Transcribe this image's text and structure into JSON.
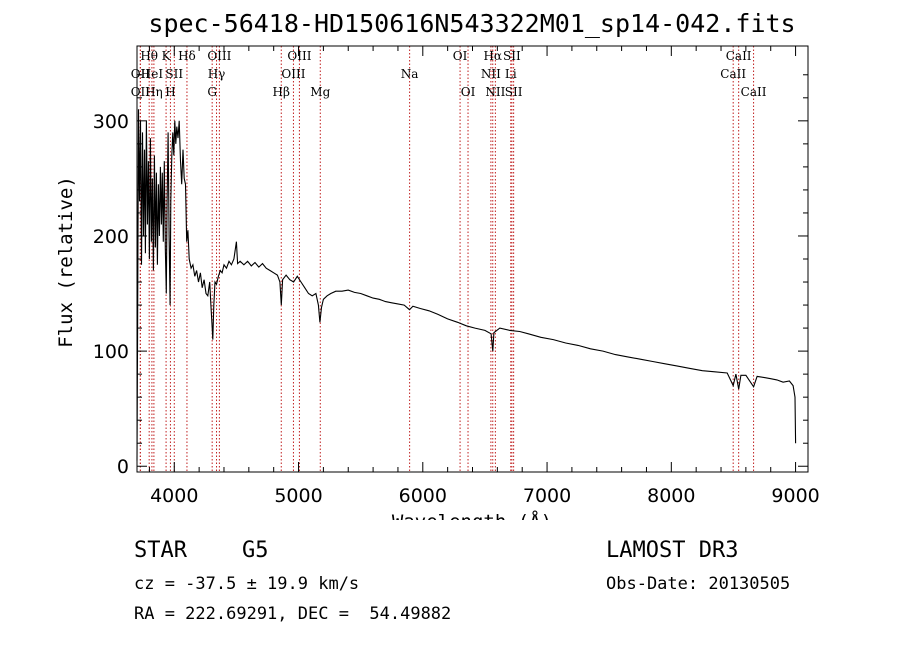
{
  "chart_data": {
    "type": "line",
    "title": "spec-56418-HD150616N543322M01_sp14-042.fits",
    "xlabel": "Wavelength (Å)",
    "ylabel": "Flux (relative)",
    "xlim": [
      3700,
      9100
    ],
    "ylim": [
      -5,
      365
    ],
    "x_ticks": [
      4000,
      5000,
      6000,
      7000,
      8000,
      9000
    ],
    "y_ticks": [
      0,
      100,
      200,
      300
    ],
    "series": [
      {
        "name": "spectrum",
        "points": [
          [
            3700,
            5
          ],
          [
            3705,
            120
          ],
          [
            3712,
            310
          ],
          [
            3720,
            230
          ],
          [
            3728,
            300
          ],
          [
            3736,
            175
          ],
          [
            3744,
            290
          ],
          [
            3752,
            200
          ],
          [
            3760,
            275
          ],
          [
            3768,
            185
          ],
          [
            3776,
            300
          ],
          [
            3784,
            210
          ],
          [
            3792,
            265
          ],
          [
            3800,
            180
          ],
          [
            3808,
            285
          ],
          [
            3816,
            195
          ],
          [
            3824,
            250
          ],
          [
            3832,
            170
          ],
          [
            3840,
            270
          ],
          [
            3848,
            190
          ],
          [
            3856,
            255
          ],
          [
            3864,
            175
          ],
          [
            3872,
            245
          ],
          [
            3880,
            200
          ],
          [
            3888,
            260
          ],
          [
            3896,
            210
          ],
          [
            3904,
            255
          ],
          [
            3912,
            195
          ],
          [
            3920,
            265
          ],
          [
            3928,
            190
          ],
          [
            3936,
            150
          ],
          [
            3942,
            230
          ],
          [
            3950,
            290
          ],
          [
            3958,
            200
          ],
          [
            3966,
            140
          ],
          [
            3972,
            230
          ],
          [
            3980,
            270
          ],
          [
            3988,
            290
          ],
          [
            3996,
            270
          ],
          [
            4004,
            300
          ],
          [
            4012,
            280
          ],
          [
            4020,
            295
          ],
          [
            4030,
            285
          ],
          [
            4040,
            300
          ],
          [
            4050,
            265
          ],
          [
            4060,
            245
          ],
          [
            4070,
            275
          ],
          [
            4080,
            250
          ],
          [
            4090,
            245
          ],
          [
            4100,
            195
          ],
          [
            4110,
            205
          ],
          [
            4120,
            180
          ],
          [
            4135,
            172
          ],
          [
            4150,
            175
          ],
          [
            4165,
            165
          ],
          [
            4180,
            170
          ],
          [
            4195,
            160
          ],
          [
            4210,
            168
          ],
          [
            4225,
            155
          ],
          [
            4240,
            162
          ],
          [
            4255,
            150
          ],
          [
            4270,
            148
          ],
          [
            4285,
            160
          ],
          [
            4295,
            140
          ],
          [
            4305,
            120
          ],
          [
            4310,
            110
          ],
          [
            4318,
            140
          ],
          [
            4328,
            160
          ],
          [
            4340,
            158
          ],
          [
            4355,
            165
          ],
          [
            4370,
            170
          ],
          [
            4385,
            168
          ],
          [
            4400,
            175
          ],
          [
            4420,
            172
          ],
          [
            4440,
            178
          ],
          [
            4460,
            175
          ],
          [
            4480,
            180
          ],
          [
            4500,
            195
          ],
          [
            4510,
            176
          ],
          [
            4530,
            178
          ],
          [
            4560,
            175
          ],
          [
            4590,
            178
          ],
          [
            4620,
            174
          ],
          [
            4650,
            177
          ],
          [
            4680,
            173
          ],
          [
            4710,
            176
          ],
          [
            4740,
            172
          ],
          [
            4770,
            170
          ],
          [
            4800,
            168
          ],
          [
            4830,
            166
          ],
          [
            4850,
            160
          ],
          [
            4861,
            140
          ],
          [
            4872,
            162
          ],
          [
            4900,
            166
          ],
          [
            4930,
            162
          ],
          [
            4960,
            160
          ],
          [
            4990,
            165
          ],
          [
            5020,
            160
          ],
          [
            5050,
            155
          ],
          [
            5080,
            150
          ],
          [
            5110,
            148
          ],
          [
            5140,
            150
          ],
          [
            5160,
            140
          ],
          [
            5172,
            125
          ],
          [
            5185,
            138
          ],
          [
            5200,
            145
          ],
          [
            5230,
            148
          ],
          [
            5260,
            150
          ],
          [
            5300,
            152
          ],
          [
            5350,
            152
          ],
          [
            5400,
            153
          ],
          [
            5450,
            151
          ],
          [
            5500,
            150
          ],
          [
            5550,
            148
          ],
          [
            5600,
            146
          ],
          [
            5650,
            145
          ],
          [
            5700,
            143
          ],
          [
            5750,
            142
          ],
          [
            5800,
            141
          ],
          [
            5850,
            140
          ],
          [
            5893,
            136
          ],
          [
            5920,
            139
          ],
          [
            5980,
            137
          ],
          [
            6050,
            135
          ],
          [
            6120,
            132
          ],
          [
            6200,
            128
          ],
          [
            6280,
            125
          ],
          [
            6350,
            122
          ],
          [
            6420,
            120
          ],
          [
            6500,
            118
          ],
          [
            6550,
            115
          ],
          [
            6563,
            100
          ],
          [
            6572,
            116
          ],
          [
            6620,
            120
          ],
          [
            6700,
            118
          ],
          [
            6780,
            117
          ],
          [
            6850,
            115
          ],
          [
            6950,
            112
          ],
          [
            7050,
            110
          ],
          [
            7150,
            107
          ],
          [
            7250,
            105
          ],
          [
            7350,
            102
          ],
          [
            7450,
            100
          ],
          [
            7550,
            97
          ],
          [
            7650,
            95
          ],
          [
            7750,
            93
          ],
          [
            7850,
            91
          ],
          [
            7950,
            89
          ],
          [
            8050,
            87
          ],
          [
            8150,
            85
          ],
          [
            8250,
            83
          ],
          [
            8350,
            82
          ],
          [
            8450,
            81
          ],
          [
            8498,
            70
          ],
          [
            8520,
            80
          ],
          [
            8542,
            67
          ],
          [
            8560,
            79
          ],
          [
            8600,
            79
          ],
          [
            8662,
            69
          ],
          [
            8690,
            78
          ],
          [
            8750,
            77
          ],
          [
            8800,
            76
          ],
          [
            8850,
            75
          ],
          [
            8900,
            73
          ],
          [
            8950,
            74
          ],
          [
            8980,
            70
          ],
          [
            8995,
            60
          ],
          [
            9000,
            20
          ]
        ]
      }
    ],
    "line_markers": [
      {
        "label": "OII",
        "wave": 3727,
        "row": 2
      },
      {
        "label": "OII",
        "wave": 3727,
        "row": 3
      },
      {
        "label": "Hθ",
        "wave": 3798,
        "row": 1
      },
      {
        "label": "HeI",
        "wave": 3820,
        "row": 2
      },
      {
        "label": "Hη",
        "wave": 3836,
        "row": 3
      },
      {
        "label": "K",
        "wave": 3934,
        "row": 1
      },
      {
        "label": "SII",
        "wave": 4000,
        "row": 2
      },
      {
        "label": "H",
        "wave": 3969,
        "row": 3
      },
      {
        "label": "Hδ",
        "wave": 4102,
        "row": 1
      },
      {
        "label": "OIII",
        "wave": 4363,
        "row": 1
      },
      {
        "label": "Hγ",
        "wave": 4340,
        "row": 2
      },
      {
        "label": "G",
        "wave": 4305,
        "row": 3
      },
      {
        "label": "OIII",
        "wave": 5007,
        "row": 1
      },
      {
        "label": "OIII",
        "wave": 4959,
        "row": 2
      },
      {
        "label": "Hβ",
        "wave": 4861,
        "row": 3
      },
      {
        "label": "Mg",
        "wave": 5175,
        "row": 3
      },
      {
        "label": "Na",
        "wave": 5894,
        "row": 2
      },
      {
        "label": "OI",
        "wave": 6300,
        "row": 1
      },
      {
        "label": "OI",
        "wave": 6364,
        "row": 3
      },
      {
        "label": "Hα",
        "wave": 6563,
        "row": 1
      },
      {
        "label": "NII",
        "wave": 6548,
        "row": 2
      },
      {
        "label": "NII",
        "wave": 6584,
        "row": 3
      },
      {
        "label": "SII",
        "wave": 6717,
        "row": 1
      },
      {
        "label": "Li",
        "wave": 6708,
        "row": 2
      },
      {
        "label": "SII",
        "wave": 6731,
        "row": 3
      },
      {
        "label": "CaII",
        "wave": 8542,
        "row": 1
      },
      {
        "label": "CaII",
        "wave": 8498,
        "row": 2
      },
      {
        "label": "CaII",
        "wave": 8662,
        "row": 3
      }
    ]
  },
  "info": {
    "object_class": "STAR",
    "subclass": "G5",
    "survey": "LAMOST DR3",
    "redshift": "cz = -37.5 ± 19.9 km/s",
    "obs_date": "Obs-Date: 20130505",
    "coords": "RA = 222.69291, DEC =  54.49882"
  }
}
